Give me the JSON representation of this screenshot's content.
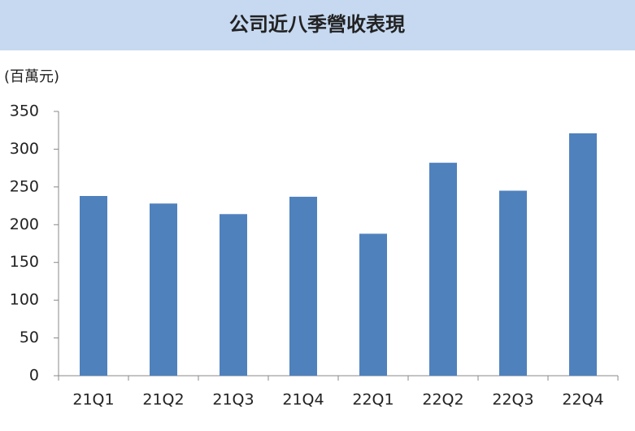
{
  "chart_data": {
    "type": "bar",
    "title": "公司近八季營收表現",
    "y_label": "(百萬元)",
    "categories": [
      "21Q1",
      "21Q2",
      "21Q3",
      "21Q4",
      "22Q1",
      "22Q2",
      "22Q3",
      "22Q4"
    ],
    "values": [
      238,
      228,
      214,
      237,
      188,
      282,
      245,
      321
    ],
    "color": "#4f81bd",
    "ylim": [
      0,
      350
    ],
    "yticks": [
      0,
      50,
      100,
      150,
      200,
      250,
      300,
      350
    ],
    "grid": false
  }
}
